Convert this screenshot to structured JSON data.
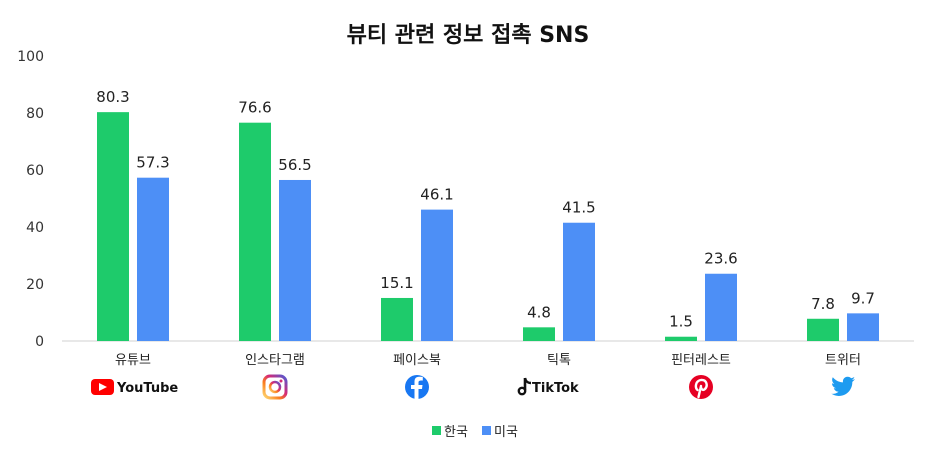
{
  "chart_data": {
    "type": "bar",
    "title": "뷰티 관련 정보 접촉 SNS",
    "categories": [
      "유튜브",
      "인스타그램",
      "페이스북",
      "틱톡",
      "핀터레스트",
      "트위터"
    ],
    "category_icons": [
      "youtube-icon",
      "instagram-icon",
      "facebook-icon",
      "tiktok-icon",
      "pinterest-icon",
      "twitter-icon"
    ],
    "brand_wordmarks": [
      "YouTube",
      "",
      "",
      "TikTok",
      "",
      ""
    ],
    "series": [
      {
        "name": "한국",
        "color": "#1ecb6b",
        "values": [
          80.3,
          76.6,
          15.1,
          4.8,
          1.5,
          7.8
        ]
      },
      {
        "name": "미국",
        "color": "#4d8ff6",
        "values": [
          57.3,
          56.5,
          46.1,
          41.5,
          23.6,
          9.7
        ]
      }
    ],
    "value_labels": [
      [
        "80.3",
        "76.6",
        "15.1",
        "4.8",
        "1.5",
        "7.8"
      ],
      [
        "57.3",
        "56.5",
        "46.1",
        "41.5",
        "23.6",
        "9.7"
      ]
    ],
    "ylim": [
      0,
      100
    ],
    "yticks": [
      "0",
      "20",
      "40",
      "60",
      "80",
      "100"
    ],
    "ytick_values": [
      0,
      20,
      40,
      60,
      80,
      100
    ],
    "xlabel": "",
    "ylabel": "",
    "grid": false,
    "legend_position": "bottom-center",
    "brand_colors": {
      "youtube": "#ff0000",
      "facebook": "#1877f2",
      "pinterest": "#e60023",
      "twitter": "#1d9bf0",
      "tiktok": "#111111"
    }
  }
}
